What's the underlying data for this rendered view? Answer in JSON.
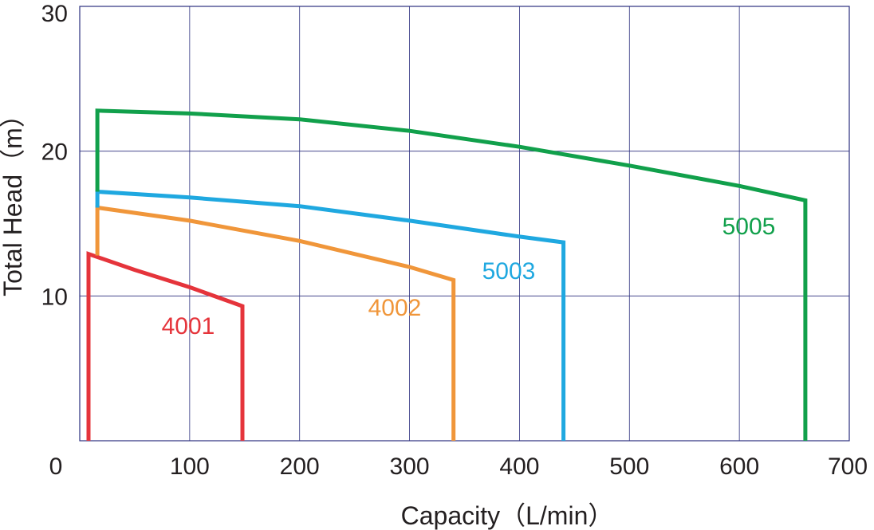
{
  "chart_data": {
    "type": "line",
    "title": "",
    "xlabel": "Capacity（L/min）",
    "ylabel": "Total Head（m）",
    "xlim": [
      0,
      700
    ],
    "ylim": [
      0,
      30
    ],
    "x_ticks": [
      "0",
      "100",
      "200",
      "300",
      "400",
      "500",
      "600",
      "700"
    ],
    "y_ticks": [
      "10",
      "20",
      "30"
    ],
    "y_tick_values": [
      10,
      20,
      30
    ],
    "grid": true,
    "legend": "inline labels",
    "series": [
      {
        "name": "4001",
        "color": "#e5343b",
        "points": [
          [
            8,
            0
          ],
          [
            8,
            12.9
          ],
          [
            50,
            11.8
          ],
          [
            100,
            10.6
          ],
          [
            148,
            9.3
          ],
          [
            148,
            0
          ]
        ],
        "label_at": [
          -2,
          8.0
        ]
      },
      {
        "name": "4002",
        "color": "#f0963a",
        "points": [
          [
            16,
            12.8
          ],
          [
            16,
            16.1
          ],
          [
            100,
            15.2
          ],
          [
            200,
            13.8
          ],
          [
            300,
            12.0
          ],
          [
            340,
            11.1
          ],
          [
            340,
            0
          ]
        ],
        "label_at": [
          -2,
          9.3
        ]
      },
      {
        "name": "5003",
        "color": "#1fa8e0",
        "points": [
          [
            16,
            16.1
          ],
          [
            16,
            17.2
          ],
          [
            100,
            16.8
          ],
          [
            200,
            16.2
          ],
          [
            300,
            15.2
          ],
          [
            400,
            14.1
          ],
          [
            440,
            13.7
          ],
          [
            440,
            0
          ]
        ],
        "label_at": [
          -2,
          11.3
        ]
      },
      {
        "name": "5005",
        "color": "#11a04b",
        "points": [
          [
            16,
            17.2
          ],
          [
            16,
            22.8
          ],
          [
            100,
            22.6
          ],
          [
            200,
            22.2
          ],
          [
            300,
            21.4
          ],
          [
            400,
            20.3
          ],
          [
            500,
            19.0
          ],
          [
            600,
            17.6
          ],
          [
            660,
            16.6
          ],
          [
            660,
            0
          ]
        ],
        "label_at": [
          -2,
          14.7
        ]
      }
    ]
  }
}
